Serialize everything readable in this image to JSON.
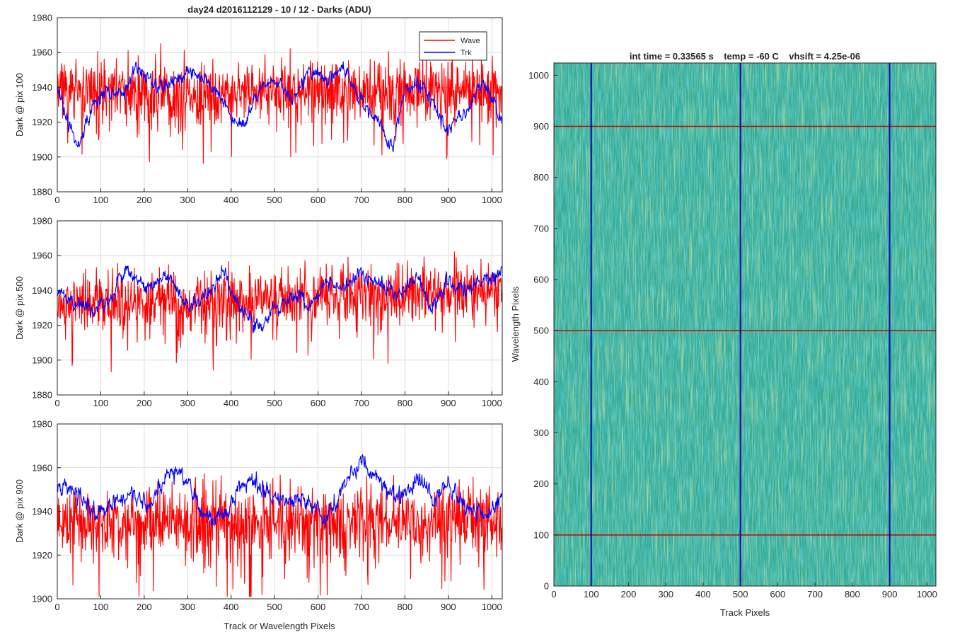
{
  "figure_title": "day24 d2016112129 - 10 / 12 - Darks (ADU)",
  "colors": {
    "wave": "#ff0000",
    "trk": "#0000ff",
    "grid": "#dcdcdc",
    "axes": "#262626",
    "image_low": "#1fa0a8",
    "image_mid": "#3aae8c",
    "image_high": "#a8c850"
  },
  "chart_data": [
    {
      "type": "line",
      "title": "day24 d2016112129 - 10 / 12 - Darks (ADU)",
      "xlabel": "",
      "ylabel": "Dark @ pix 100",
      "xlim": [
        0,
        1024
      ],
      "ylim": [
        1880,
        1980
      ],
      "xticks": [
        0,
        100,
        200,
        300,
        400,
        500,
        600,
        700,
        800,
        900,
        1000
      ],
      "yticks": [
        1880,
        1900,
        1920,
        1940,
        1960,
        1980
      ],
      "grid": true,
      "legend": {
        "position": "top-right",
        "entries": [
          "Wave",
          "Trk"
        ]
      },
      "series": [
        {
          "name": "Wave",
          "color": "#ff0000",
          "baseline": 1938,
          "x": [
            0,
            100,
            200,
            300,
            400,
            450,
            500,
            600,
            700,
            800,
            900,
            1024
          ],
          "values": [
            1940,
            1938,
            1937,
            1936,
            1937,
            1936,
            1938,
            1939,
            1938,
            1939,
            1938,
            1939
          ],
          "spread": 9,
          "max": 1972,
          "min": 1894
        },
        {
          "name": "Trk",
          "color": "#0000ff",
          "x": [
            0,
            20,
            50,
            80,
            110,
            150,
            180,
            230,
            260,
            300,
            340,
            380,
            400,
            430,
            470,
            500,
            540,
            580,
            620,
            660,
            690,
            740,
            770,
            800,
            840,
            880,
            900,
            950,
            980,
            1024
          ],
          "values": [
            1940,
            1922,
            1906,
            1928,
            1938,
            1935,
            1952,
            1940,
            1942,
            1950,
            1945,
            1932,
            1923,
            1918,
            1940,
            1945,
            1934,
            1950,
            1944,
            1952,
            1935,
            1920,
            1905,
            1938,
            1942,
            1925,
            1918,
            1928,
            1945,
            1920
          ],
          "spread": 4,
          "max": 1966,
          "min": 1897
        }
      ]
    },
    {
      "type": "line",
      "xlabel": "",
      "ylabel": "Dark @ pix 500",
      "xlim": [
        0,
        1024
      ],
      "ylim": [
        1880,
        1980
      ],
      "xticks": [
        0,
        100,
        200,
        300,
        400,
        500,
        600,
        700,
        800,
        900,
        1000
      ],
      "yticks": [
        1880,
        1900,
        1920,
        1940,
        1960,
        1980
      ],
      "grid": true,
      "series": [
        {
          "name": "Wave",
          "color": "#ff0000",
          "x": [
            0,
            200,
            400,
            600,
            800,
            1024
          ],
          "values": [
            1934,
            1933,
            1934,
            1938,
            1938,
            1939
          ],
          "spread": 9,
          "max": 1969,
          "min": 1887
        },
        {
          "name": "Trk",
          "color": "#0000ff",
          "x": [
            0,
            40,
            80,
            120,
            160,
            200,
            260,
            300,
            340,
            380,
            420,
            470,
            500,
            540,
            580,
            620,
            660,
            700,
            740,
            780,
            830,
            860,
            900,
            940,
            980,
            1024
          ],
          "values": [
            1940,
            1932,
            1930,
            1936,
            1952,
            1942,
            1948,
            1930,
            1936,
            1950,
            1930,
            1918,
            1930,
            1936,
            1930,
            1946,
            1942,
            1950,
            1944,
            1936,
            1948,
            1930,
            1946,
            1940,
            1946,
            1950
          ],
          "spread": 4,
          "max": 1964,
          "min": 1906
        }
      ]
    },
    {
      "type": "line",
      "xlabel": "Track or Wavelength Pixels",
      "ylabel": "Dark @ pix 900",
      "xlim": [
        0,
        1024
      ],
      "ylim": [
        1900,
        1980
      ],
      "xticks": [
        0,
        100,
        200,
        300,
        400,
        500,
        600,
        700,
        800,
        900,
        1000
      ],
      "yticks": [
        1900,
        1920,
        1940,
        1960,
        1980
      ],
      "grid": true,
      "series": [
        {
          "name": "Wave",
          "color": "#ff0000",
          "x": [
            0,
            200,
            400,
            600,
            800,
            1024
          ],
          "values": [
            1936,
            1935,
            1935,
            1935,
            1935,
            1935
          ],
          "spread": 8,
          "max": 1962,
          "min": 1901
        },
        {
          "name": "Trk",
          "color": "#0000ff",
          "x": [
            0,
            40,
            90,
            130,
            170,
            220,
            260,
            300,
            330,
            380,
            420,
            460,
            500,
            540,
            580,
            620,
            660,
            700,
            740,
            780,
            830,
            870,
            900,
            950,
            990,
            1024
          ],
          "values": [
            1952,
            1950,
            1938,
            1944,
            1948,
            1944,
            1960,
            1955,
            1938,
            1936,
            1952,
            1952,
            1946,
            1944,
            1945,
            1935,
            1952,
            1962,
            1955,
            1946,
            1954,
            1945,
            1952,
            1940,
            1938,
            1948
          ],
          "spread": 4,
          "max": 1974,
          "min": 1922
        }
      ]
    },
    {
      "type": "heatmap",
      "title": "int time = 0.33565 s    temp = -60 C    vhsift = 4.25e-06",
      "xlabel": "Track Pixels",
      "ylabel": "Wavelength Pixels",
      "xlim": [
        0,
        1024
      ],
      "ylim": [
        0,
        1024
      ],
      "xticks": [
        0,
        100,
        200,
        300,
        400,
        500,
        600,
        700,
        800,
        900,
        1000
      ],
      "yticks": [
        0,
        100,
        200,
        300,
        400,
        500,
        600,
        700,
        800,
        900,
        1000
      ],
      "vertical_lines": {
        "color": "#0000b4",
        "x": [
          100,
          500,
          900
        ]
      },
      "horizontal_lines": {
        "color": "#c80000",
        "y": [
          100,
          500,
          900
        ]
      }
    }
  ]
}
